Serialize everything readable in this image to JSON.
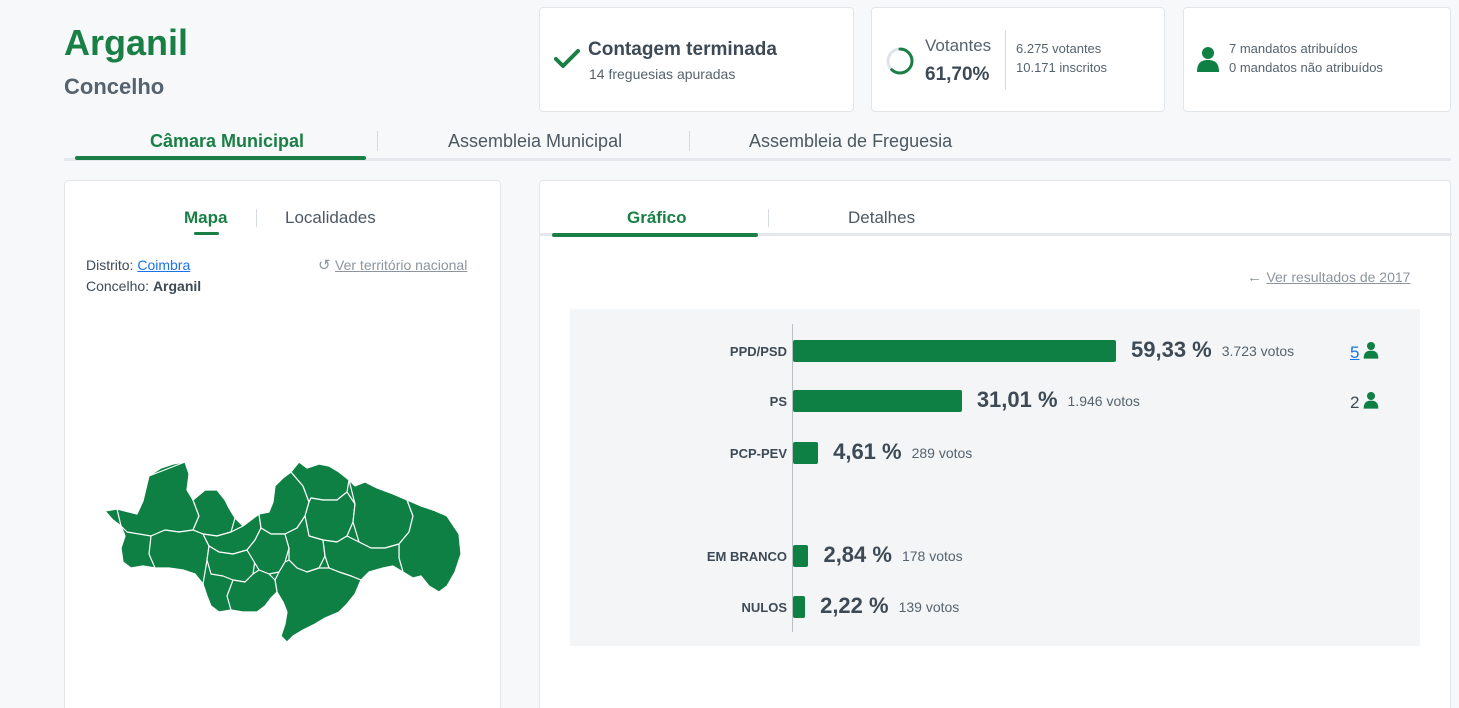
{
  "municipality": {
    "name": "Arganil",
    "type": "Concelho"
  },
  "status": {
    "title": "Contagem terminada",
    "subtitle": "14 freguesias apuradas"
  },
  "turnout": {
    "label": "Votantes",
    "percent": "61,70%",
    "percent_value": 61.7,
    "voters": "6.275 votantes",
    "registered": "10.171 inscritos"
  },
  "mandates": {
    "assigned": "7 mandatos atribuídos",
    "unassigned": "0 mandatos não atribuídos"
  },
  "tabs": [
    "Câmara Municipal",
    "Assembleia Municipal",
    "Assembleia de Freguesia"
  ],
  "map_panel": {
    "tabs": [
      "Mapa",
      "Localidades"
    ],
    "district_label": "Distrito:",
    "district_value": "Coimbra",
    "county_label": "Concelho:",
    "county_value": "Arganil",
    "national_link": "Ver território nacional"
  },
  "chart_panel": {
    "tabs": [
      "Gráfico",
      "Detalhes"
    ],
    "previous_link": "Ver resultados de 2017"
  },
  "colors": {
    "accent": "#1a7f45",
    "bar": "#0e8043",
    "link": "#1a73e8"
  },
  "chart_data": {
    "type": "bar",
    "orientation": "horizontal",
    "categories": [
      "PPD/PSD",
      "PS",
      "PCP-PEV",
      "EM BRANCO",
      "NULOS"
    ],
    "percent_labels": [
      "59,33 %",
      "31,01 %",
      "4,61 %",
      "2,84 %",
      "2,22 %"
    ],
    "values": [
      59.33,
      31.01,
      4.61,
      2.84,
      2.22
    ],
    "votes": [
      "3.723 votos",
      "1.946 votos",
      "289 votos",
      "178 votos",
      "139 votos"
    ],
    "seats": [
      "5",
      "2",
      "",
      "",
      ""
    ],
    "xlim": [
      0,
      100
    ]
  }
}
